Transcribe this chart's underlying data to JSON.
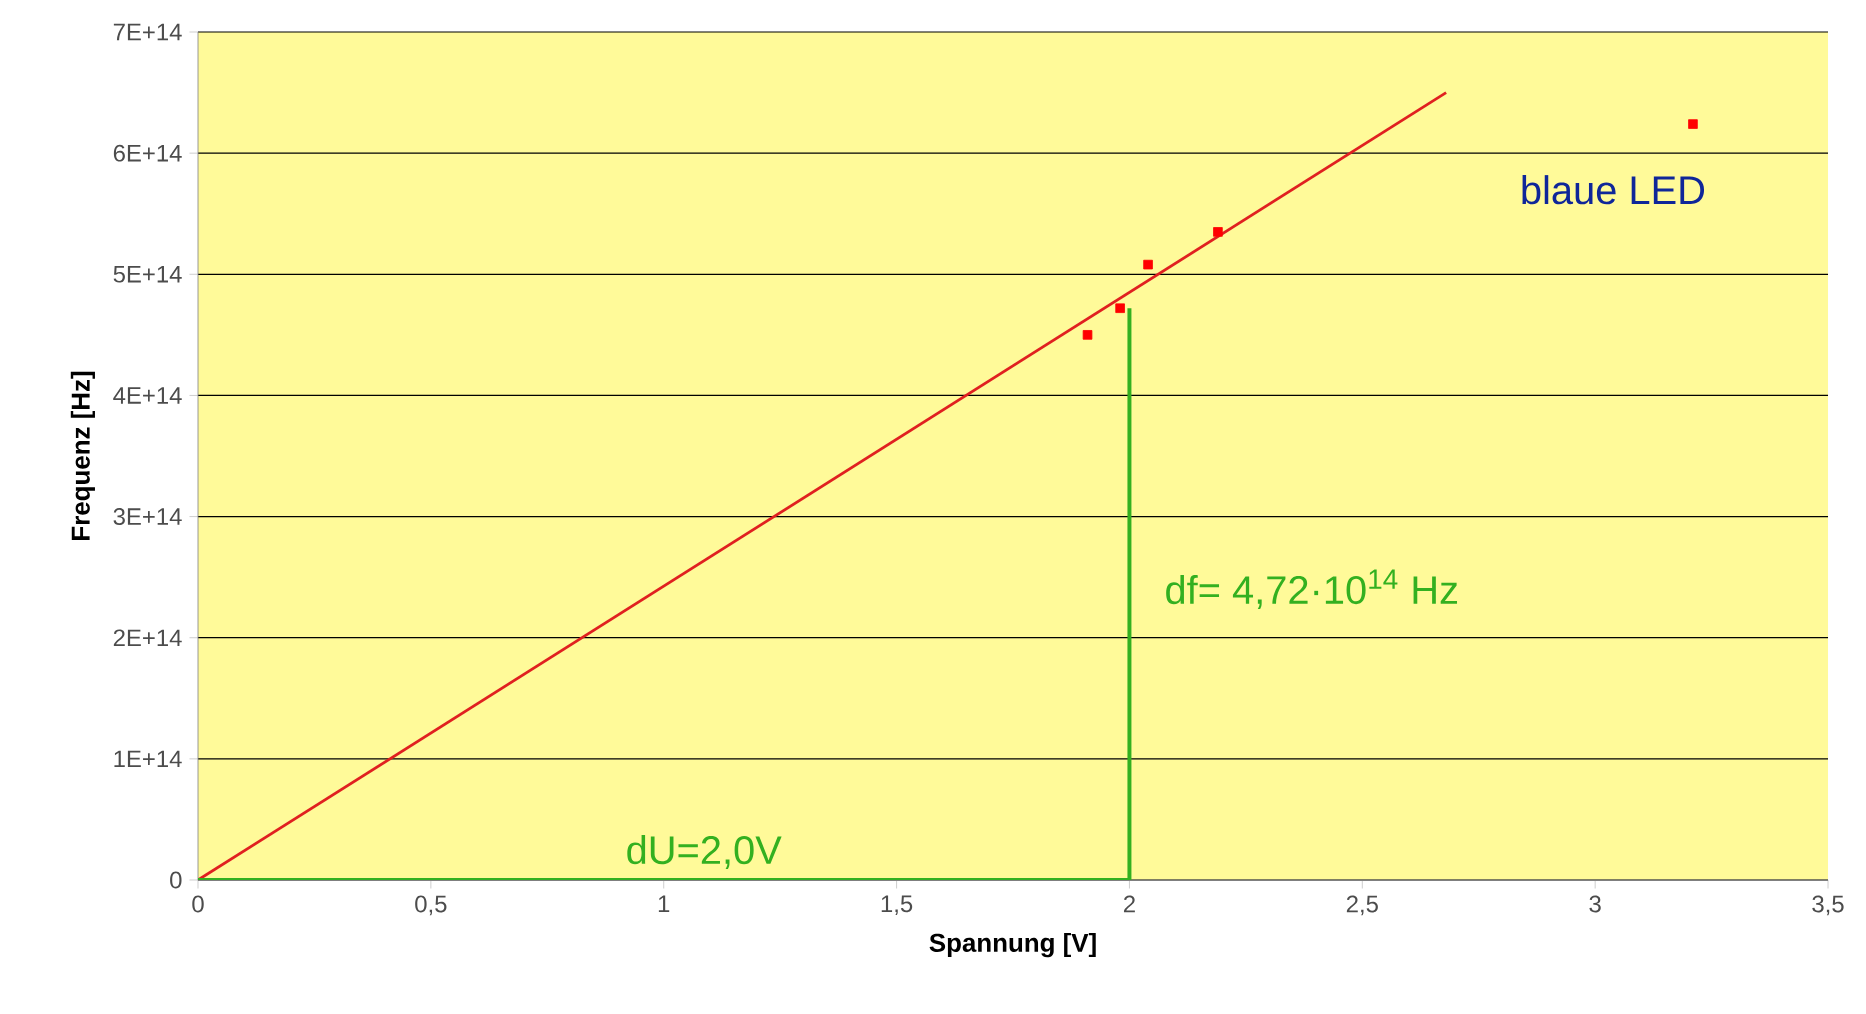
{
  "chart_data": {
    "type": "scatter",
    "xlabel": "Spannung [V]",
    "ylabel": "Frequenz [Hz]",
    "series": [
      {
        "marker": "square",
        "color": "#ff0000",
        "x": [
          1.91,
          1.98,
          2.04,
          2.19,
          3.21
        ],
        "values": [
          450000000000000.0,
          472000000000000.0,
          508000000000000.0,
          535000000000000.0,
          624000000000000.0
        ]
      },
      {
        "type": "line",
        "marker": "none",
        "color": "#e02020",
        "x": [
          0,
          2.68
        ],
        "values": [
          0,
          650000000000000.0
        ]
      },
      {
        "type": "line",
        "marker": "none",
        "color": "#33b020",
        "x": [
          2,
          2
        ],
        "values": [
          0,
          472000000000000.0
        ]
      },
      {
        "type": "line",
        "marker": "none",
        "color": "#33b020",
        "x": [
          0,
          2
        ],
        "values": [
          0,
          0
        ]
      }
    ],
    "annotations": [
      {
        "text": "blaue LED",
        "x": 3.21,
        "y": 624000000000000.0
      },
      {
        "text": "df= 4,72·10$^{14}$ Hz",
        "x": 2,
        "y": 240000000000000.0
      },
      {
        "text": "dU=2,0V",
        "x": 1,
        "y": 0
      }
    ],
    "xlim": [
      0,
      3.5
    ],
    "ylim": [
      0,
      700000000000000.0
    ],
    "xticks": [
      0,
      {
        "value": 0.5,
        "label": "0,5"
      },
      1,
      {
        "value": 1.5,
        "label": "1,5"
      },
      2,
      {
        "value": 2.5,
        "label": "2,5"
      },
      3,
      {
        "value": 3.5,
        "label": "3,5"
      }
    ],
    "yticks": [
      0,
      {
        "value": 100000000000000.0,
        "label": "1E+14"
      },
      {
        "value": 200000000000000.0,
        "label": "2E+14"
      },
      {
        "value": 300000000000000.0,
        "label": "3E+14"
      },
      {
        "value": 400000000000000.0,
        "label": "4E+14"
      },
      {
        "value": 500000000000000.0,
        "label": "5E+14"
      },
      {
        "value": 600000000000000.0,
        "label": "6E+14"
      },
      {
        "value": 700000000000000.0,
        "label": "7E+14"
      }
    ],
    "grid": "y"
  }
}
